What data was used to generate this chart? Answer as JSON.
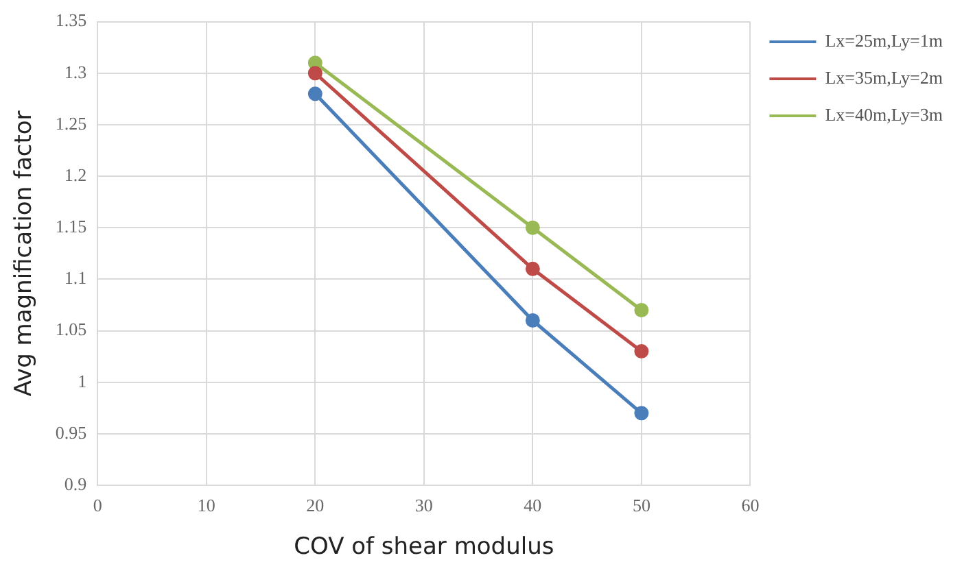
{
  "chart_data": {
    "type": "line",
    "xlabel": "COV of shear modulus",
    "ylabel": "Avg magnification factor",
    "x": [
      20,
      40,
      50
    ],
    "series": [
      {
        "name": "Lx=25m,Ly=1m",
        "color": "#4a7ebb",
        "values": [
          1.28,
          1.06,
          0.97
        ]
      },
      {
        "name": "Lx=35m,Ly=2m",
        "color": "#be4b48",
        "values": [
          1.3,
          1.11,
          1.03
        ]
      },
      {
        "name": "Lx=40m,Ly=3m",
        "color": "#98b954",
        "values": [
          1.31,
          1.15,
          1.07
        ]
      }
    ],
    "xlim": [
      0,
      60
    ],
    "xticks": [
      0,
      10,
      20,
      30,
      40,
      50,
      60
    ],
    "ylim": [
      0.9,
      1.35
    ],
    "yticks": [
      0.9,
      0.95,
      1,
      1.05,
      1.1,
      1.15,
      1.2,
      1.25,
      1.3,
      1.35
    ],
    "grid": true,
    "legend": "top right",
    "marker": "circle",
    "line_style": "solid"
  }
}
